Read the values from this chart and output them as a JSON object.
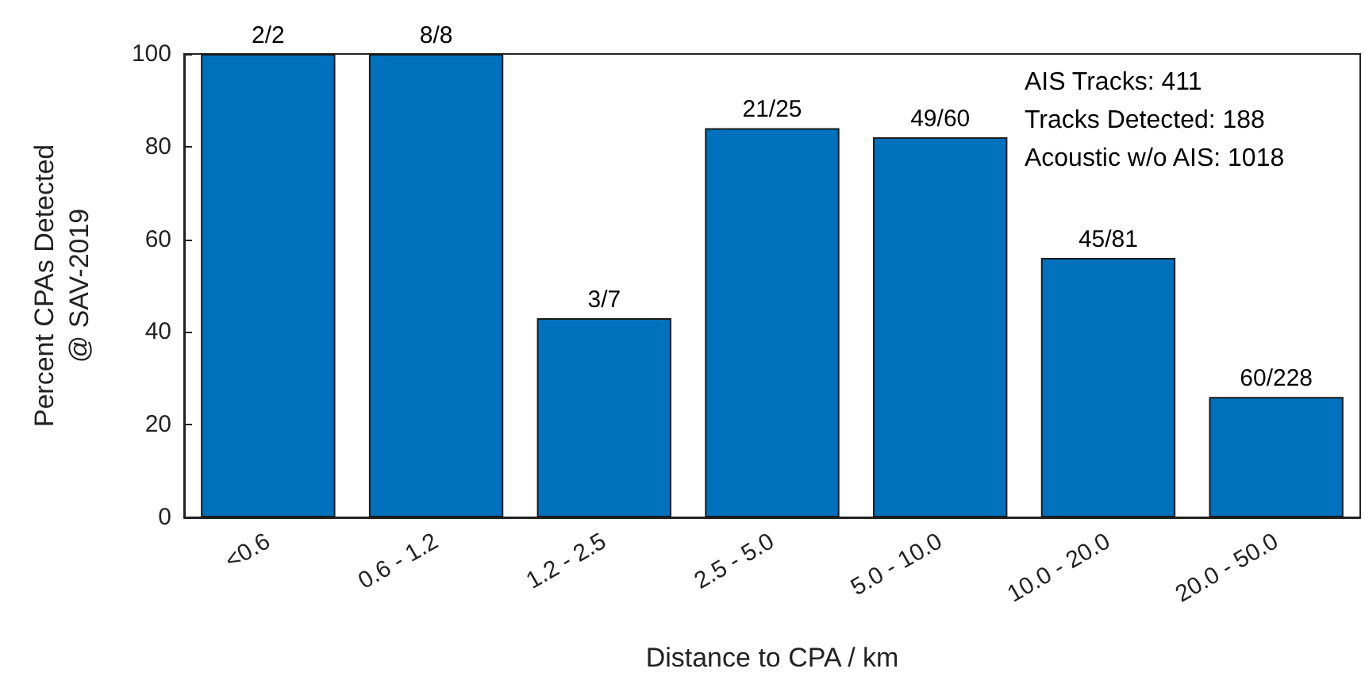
{
  "chart_data": {
    "type": "bar",
    "categories": [
      "<0.6",
      "0.6 - 1.2",
      "1.2 - 2.5",
      "2.5 - 5.0",
      "5.0 - 10.0",
      "10.0 - 20.0",
      "20.0 - 50.0"
    ],
    "values": [
      100,
      100,
      43,
      84,
      82,
      56,
      26
    ],
    "color": "#0072bd",
    "xlabel": "Distance to CPA / km",
    "ylabel": "Percent CPAs Detected\n@ SAV-2019",
    "ylim": [
      0,
      100
    ],
    "yticks": [
      0,
      20,
      40,
      60,
      80,
      100
    ],
    "annotations": [
      "AIS Tracks: 411",
      "Tracks Detected: 188",
      "Acoustic w/o AIS: 1018",
      {
        "text": "2/2",
        "x": "<0.6",
        "y": 100
      },
      {
        "text": "8/8",
        "x": "0.6 - 1.2",
        "y": 100
      },
      {
        "text": "3/7",
        "x": "1.2 - 2.5",
        "y": 43
      },
      {
        "text": "21/25",
        "x": "2.5 - 5.0",
        "y": 84
      },
      {
        "text": "49/60",
        "x": "5.0 - 10.0",
        "y": 82
      },
      {
        "text": "45/81",
        "x": "10.0 - 20.0",
        "y": 56
      },
      {
        "text": "60/228",
        "x": "20.0 - 50.0",
        "y": 26
      }
    ],
    "grid": false
  }
}
